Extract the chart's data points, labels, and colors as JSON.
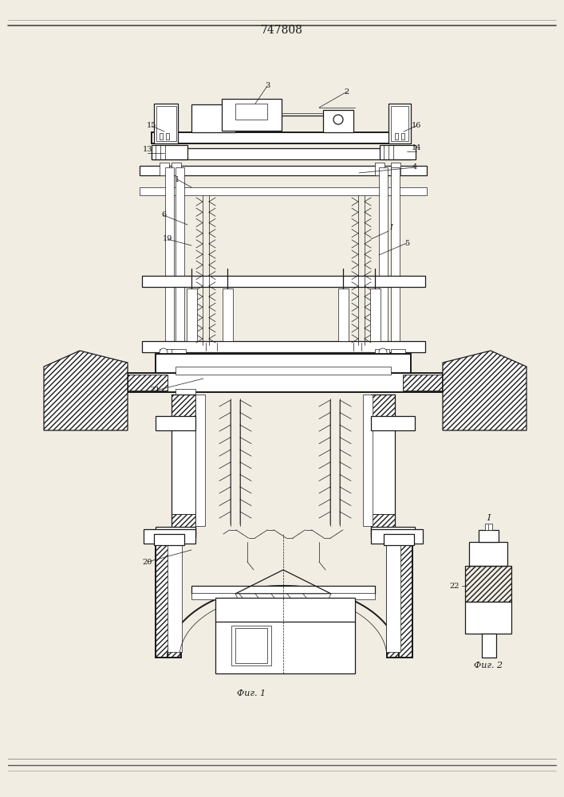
{
  "title": "747808",
  "bg_color": "#f2ede3",
  "line_color": "#1a1a1a",
  "fig1_label": "Фиг. 1",
  "fig2_label": "Фиг. 2",
  "label_fontsize": 7,
  "title_fontsize": 10,
  "lw_main": 0.9,
  "lw_thick": 1.4,
  "lw_thin": 0.5,
  "hatch_density": "/////"
}
